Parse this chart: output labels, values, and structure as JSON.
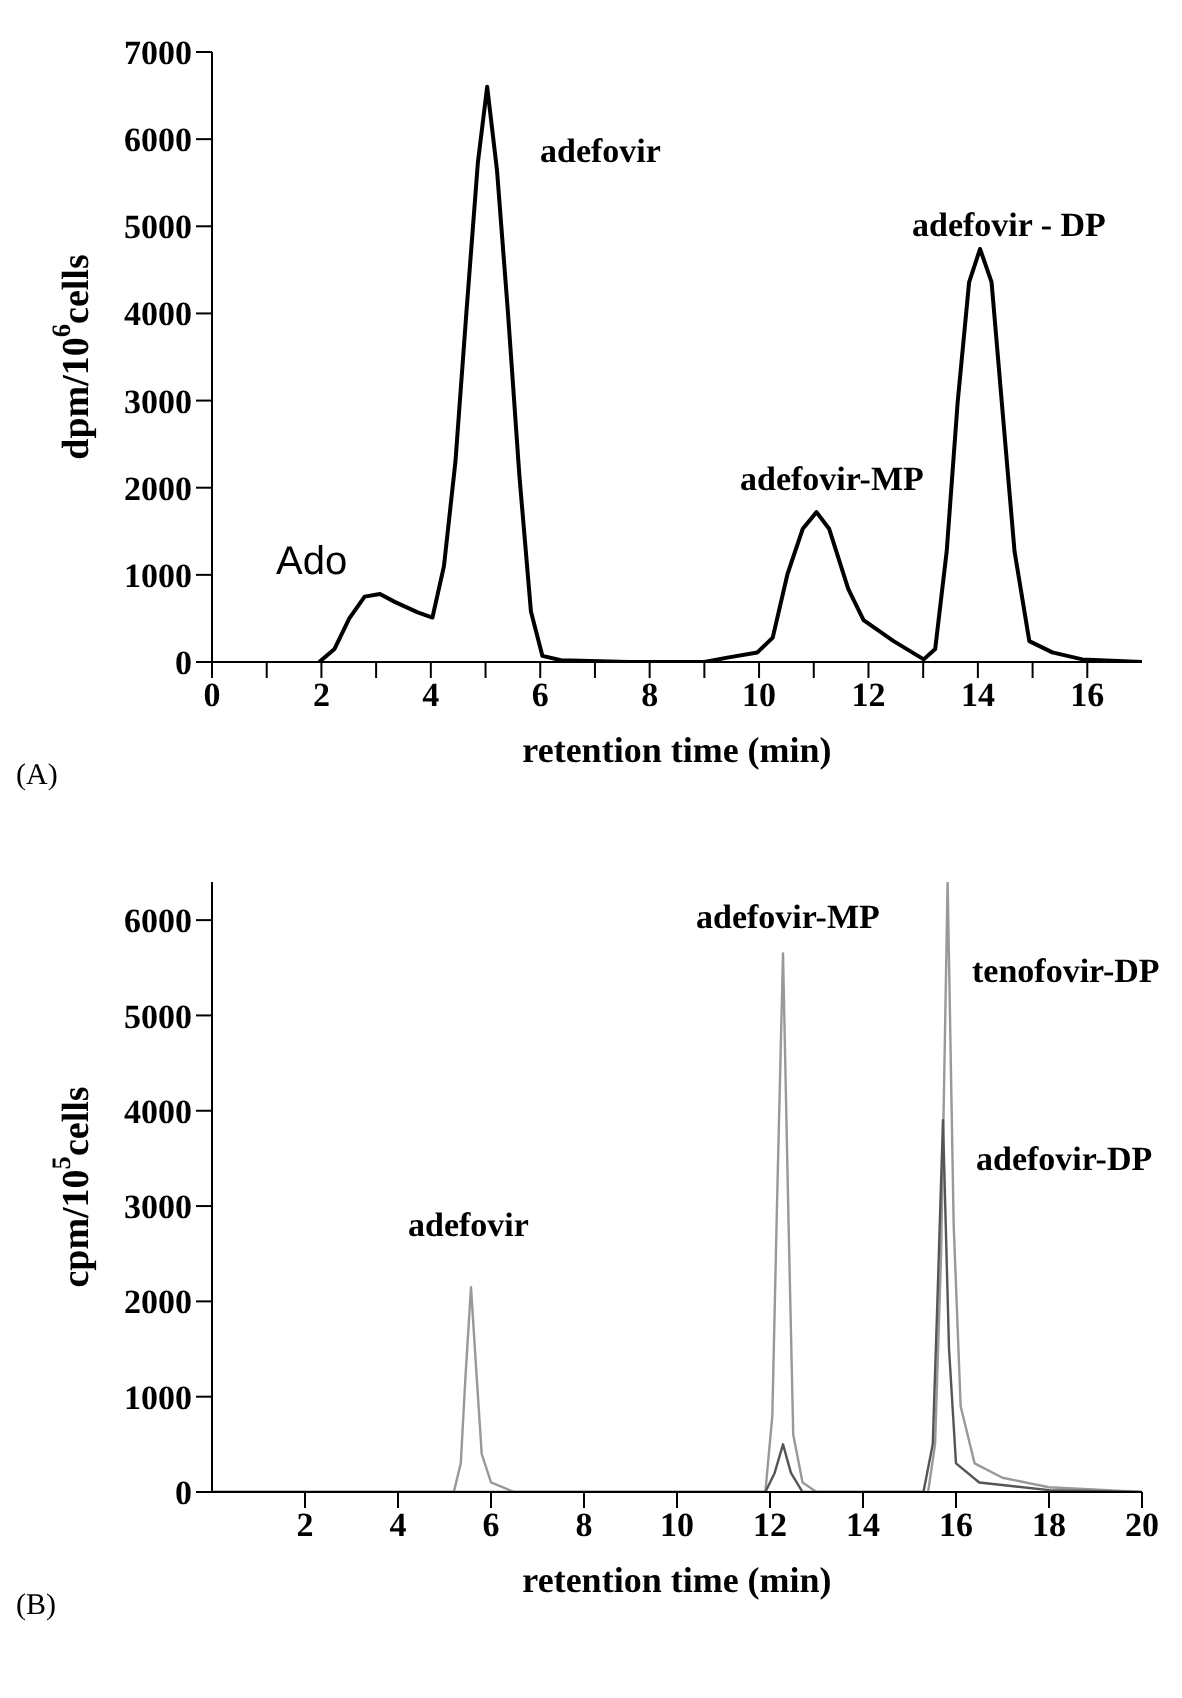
{
  "chart_data": [
    {
      "type": "line",
      "xlabel": "retention time (min)",
      "ylabel": "dpm/10$^{6}$cells",
      "xlim": [
        0,
        17
      ],
      "xticks": [
        0,
        {
          "value": 1,
          "label": null
        },
        2,
        {
          "value": 3,
          "label": null
        },
        4,
        {
          "value": 5,
          "label": null
        },
        6,
        {
          "value": 7,
          "label": null
        },
        8,
        {
          "value": 9,
          "label": null
        },
        10,
        {
          "value": 11,
          "label": null
        },
        12,
        {
          "value": 13,
          "label": null
        },
        14,
        {
          "value": 15,
          "label": null
        },
        16
      ],
      "ylim": [
        0,
        7000
      ],
      "yticks": [
        0,
        1000,
        2000,
        3000,
        4000,
        5000,
        6000,
        7000
      ],
      "grid": false,
      "marker": "none",
      "line_style": "solid",
      "series": [
        {
          "color": "#000000",
          "x": [
            1.96,
            2.24,
            2.51,
            2.79,
            3.07,
            3.34,
            3.76,
            4.03,
            4.24,
            4.45,
            4.65,
            4.86,
            5.03,
            5.21,
            5.41,
            5.62,
            5.83,
            6.04,
            6.38,
            7.62,
            9.0,
            9.42,
            9.97,
            10.25,
            10.52,
            10.8,
            11.05,
            11.28,
            11.63,
            11.91,
            12.46,
            13.01,
            13.22,
            13.43,
            13.63,
            13.84,
            14.04,
            14.25,
            14.46,
            14.67,
            14.94,
            15.36,
            15.91,
            17.0
          ],
          "values": [
            0,
            150,
            500,
            750,
            780,
            690,
            570,
            510,
            1100,
            2300,
            4010,
            5730,
            6600,
            5640,
            4010,
            2130,
            580,
            70,
            20,
            0,
            0,
            50,
            110,
            280,
            1010,
            1530,
            1720,
            1530,
            840,
            480,
            240,
            30,
            150,
            1270,
            2980,
            4360,
            4740,
            4360,
            2810,
            1270,
            240,
            110,
            30,
            0
          ]
        }
      ],
      "annotations": [
        "Ado",
        "adefovir",
        "adefovir-MP",
        "adefovir - DP",
        "(A)"
      ]
    },
    {
      "type": "line",
      "xlabel": "retention time (min)",
      "ylabel": "cpm/10$^{5}$cells",
      "xlim": [
        0,
        20
      ],
      "xticks": [
        2,
        4,
        6,
        8,
        10,
        12,
        14,
        16,
        18,
        20
      ],
      "ylim": [
        0,
        6400
      ],
      "yticks": [
        0,
        1000,
        2000,
        3000,
        4000,
        5000,
        6000
      ],
      "grid": false,
      "marker": "none",
      "line_style": "solid",
      "series": [
        {
          "color": "#999999",
          "x": [
            0,
            5.2,
            5.35,
            5.45,
            5.57,
            5.68,
            5.8,
            6.0,
            6.5,
            11.9,
            12.05,
            12.15,
            12.28,
            12.4,
            12.5,
            12.7,
            13,
            15.4,
            15.55,
            15.68,
            15.82,
            15.95,
            16.1,
            16.4,
            17,
            18,
            20
          ],
          "values": [
            0,
            0,
            300,
            1200,
            2150,
            1300,
            400,
            100,
            0,
            0,
            800,
            3000,
            5650,
            2800,
            600,
            100,
            0,
            0,
            500,
            2500,
            6400,
            2800,
            900,
            300,
            150,
            50,
            0
          ]
        },
        {
          "color": "#555555",
          "x": [
            0,
            11.9,
            12.1,
            12.28,
            12.45,
            12.7,
            15.3,
            15.5,
            15.6,
            15.72,
            15.85,
            16.0,
            16.5,
            18,
            20
          ],
          "values": [
            0,
            0,
            200,
            500,
            200,
            0,
            0,
            500,
            2000,
            3900,
            1500,
            300,
            100,
            20,
            0
          ]
        }
      ],
      "annotations": [
        "adefovir",
        "adefovir-MP",
        "tenofovir-DP",
        "adefovir-DP",
        "(B)"
      ]
    }
  ]
}
